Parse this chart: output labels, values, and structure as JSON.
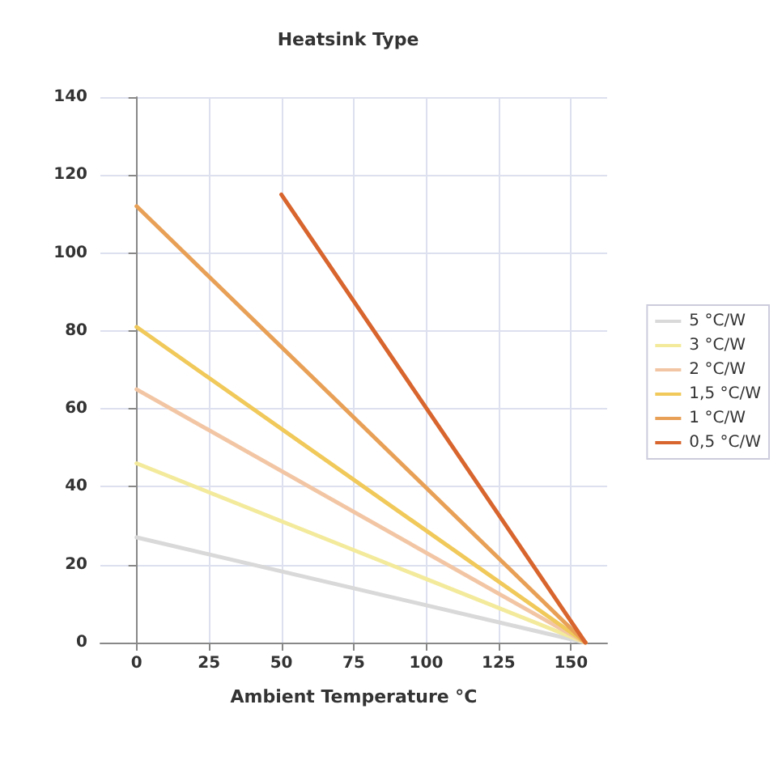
{
  "chart_data": {
    "type": "line",
    "title": "Heatsink Type",
    "xlabel": "Ambient Temperature °C",
    "xlim": [
      -12.5,
      162.5
    ],
    "xticks": [
      0,
      25,
      50,
      75,
      100,
      125,
      150
    ],
    "ylim": [
      0,
      140
    ],
    "yticks": [
      0,
      20,
      40,
      60,
      80,
      100,
      120,
      140
    ],
    "grid": true,
    "legend": "right",
    "marker": "none",
    "series": [
      {
        "name": "5 °C/W",
        "color": "#d9d9d9",
        "x": [
          0,
          155
        ],
        "values": [
          27,
          0
        ]
      },
      {
        "name": "3 °C/W",
        "color": "#f3ea9c",
        "x": [
          0,
          155
        ],
        "values": [
          46,
          0
        ]
      },
      {
        "name": "2 °C/W",
        "color": "#f2c6a4",
        "x": [
          0,
          155
        ],
        "values": [
          65,
          0
        ]
      },
      {
        "name": "1,5 °C/W",
        "color": "#f0c95a",
        "x": [
          0,
          155
        ],
        "values": [
          81,
          0
        ]
      },
      {
        "name": "1 °C/W",
        "color": "#e8a057",
        "x": [
          0,
          155
        ],
        "values": [
          112,
          0
        ]
      },
      {
        "name": "0,5 °C/W",
        "color": "#d8652e",
        "x": [
          50,
          155
        ],
        "values": [
          115,
          0
        ]
      }
    ]
  }
}
